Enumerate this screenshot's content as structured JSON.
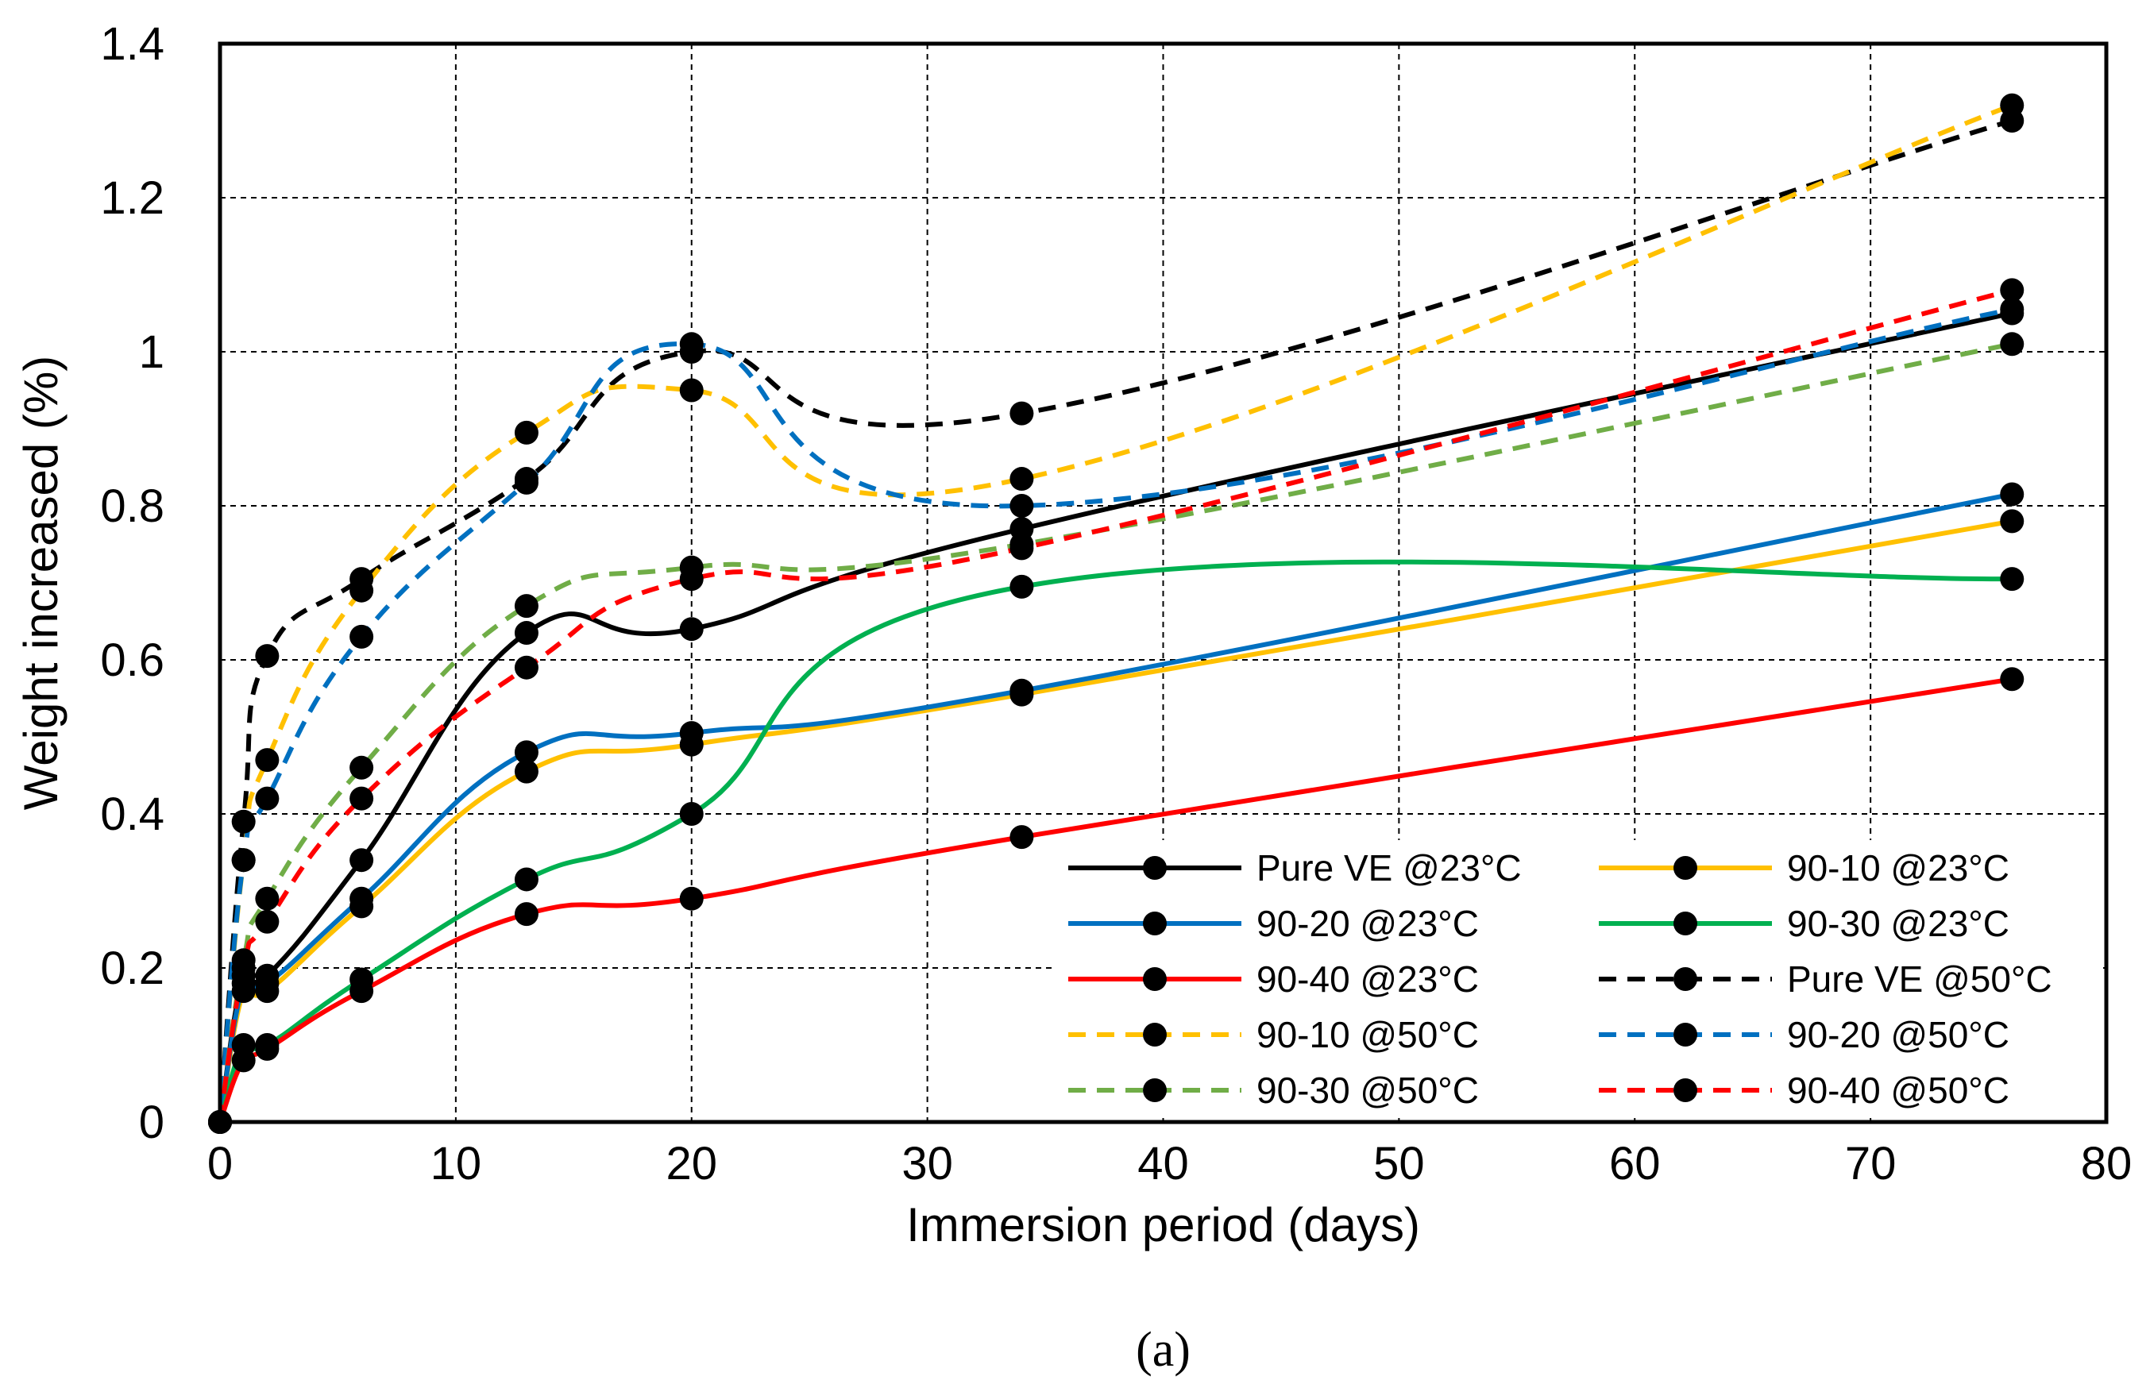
{
  "chart_data": {
    "type": "line",
    "title": "",
    "xlabel": "Immersion period (days)",
    "ylabel": "Weight increased (%)",
    "xlim": [
      0,
      80
    ],
    "ylim": [
      0,
      1.4
    ],
    "xticks": [
      0,
      10,
      20,
      30,
      40,
      50,
      60,
      70,
      80
    ],
    "yticks": [
      0,
      0.2,
      0.4,
      0.6,
      0.8,
      1,
      1.2,
      1.4
    ],
    "xtick_labels": [
      "0",
      "10",
      "20",
      "30",
      "40",
      "50",
      "60",
      "70",
      "80"
    ],
    "ytick_labels": [
      "0",
      "0.2",
      "0.4",
      "0.6",
      "0.8",
      "1",
      "1.2",
      "1.4"
    ],
    "grid": true,
    "legend_position": "bottom-right",
    "caption": "(a)",
    "x": [
      0,
      1,
      2,
      6,
      13,
      20,
      34,
      76
    ],
    "series": [
      {
        "name": "Pure VE @23°C",
        "color": "#000000",
        "dash": "solid",
        "values": [
          0,
          0.19,
          0.19,
          0.34,
          0.635,
          0.64,
          0.77,
          1.05
        ]
      },
      {
        "name": "90-10 @23°C",
        "color": "#FFC000",
        "dash": "solid",
        "values": [
          0,
          0.17,
          0.17,
          0.28,
          0.455,
          0.49,
          0.555,
          0.78
        ]
      },
      {
        "name": "90-20 @23°C",
        "color": "#0070C0",
        "dash": "solid",
        "values": [
          0,
          0.18,
          0.18,
          0.29,
          0.48,
          0.505,
          0.56,
          0.815
        ]
      },
      {
        "name": "90-30 @23°C",
        "color": "#00B050",
        "dash": "solid",
        "values": [
          0,
          0.1,
          0.1,
          0.185,
          0.315,
          0.4,
          0.695,
          0.705
        ]
      },
      {
        "name": "90-40 @23°C",
        "color": "#FF0000",
        "dash": "solid",
        "values": [
          0,
          0.08,
          0.095,
          0.17,
          0.27,
          0.29,
          0.37,
          0.575
        ]
      },
      {
        "name": "Pure VE @50°C",
        "color": "#000000",
        "dash": "dashed",
        "values": [
          0,
          0.39,
          0.605,
          0.705,
          0.835,
          1.0,
          0.92,
          1.3
        ]
      },
      {
        "name": "90-10 @50°C",
        "color": "#FFC000",
        "dash": "dashed",
        "values": [
          0,
          0.34,
          0.47,
          0.69,
          0.895,
          0.95,
          0.835,
          1.32
        ]
      },
      {
        "name": "90-20 @50°C",
        "color": "#0070C0",
        "dash": "dashed",
        "values": [
          0,
          0.34,
          0.42,
          0.63,
          0.83,
          1.01,
          0.8,
          1.055
        ]
      },
      {
        "name": "90-30 @50°C",
        "color": "#70AD47",
        "dash": "dashed",
        "values": [
          0,
          0.21,
          0.29,
          0.46,
          0.67,
          0.72,
          0.75,
          1.01
        ]
      },
      {
        "name": "90-40 @50°C",
        "color": "#FF0000",
        "dash": "dashed",
        "values": [
          0,
          0.2,
          0.26,
          0.42,
          0.59,
          0.705,
          0.745,
          1.08
        ]
      }
    ]
  }
}
